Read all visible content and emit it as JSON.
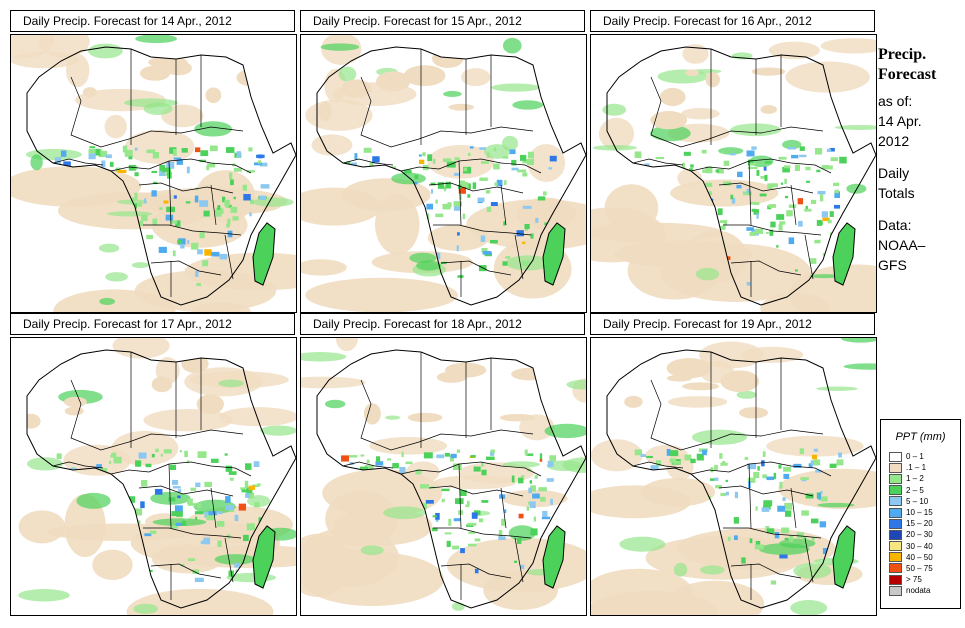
{
  "panels": [
    {
      "title": "Daily Precip. Forecast for  14 Apr., 2012",
      "seed": 11,
      "intensity": 1.0
    },
    {
      "title": "Daily Precip. Forecast for  15 Apr., 2012",
      "seed": 23,
      "intensity": 0.85
    },
    {
      "title": "Daily Precip. Forecast for  16 Apr., 2012",
      "seed": 37,
      "intensity": 0.95
    },
    {
      "title": "Daily Precip. Forecast for  17 Apr., 2012",
      "seed": 41,
      "intensity": 0.8
    },
    {
      "title": "Daily Precip. Forecast for  18 Apr., 2012",
      "seed": 53,
      "intensity": 0.85
    },
    {
      "title": "Daily Precip. Forecast for  19 Apr., 2012",
      "seed": 67,
      "intensity": 0.9
    }
  ],
  "side": {
    "title": "Precip.\nForecast",
    "asof": "as of:\n14 Apr.\n2012",
    "totals": "Daily\nTotals",
    "source": "Data:\nNOAA–\nGFS"
  },
  "legend": {
    "title": "PPT (mm)",
    "items": [
      {
        "label": "0 – 1",
        "color": "#ffffff"
      },
      {
        "label": ".1 – 1",
        "color": "#f0dcc0"
      },
      {
        "label": "1 – 2",
        "color": "#96e68c"
      },
      {
        "label": "2 – 5",
        "color": "#4cd25a"
      },
      {
        "label": "5 – 10",
        "color": "#8cc8f0"
      },
      {
        "label": "10 – 15",
        "color": "#50aaf0"
      },
      {
        "label": "15 – 20",
        "color": "#2d78e6"
      },
      {
        "label": "20 – 30",
        "color": "#1e46b4"
      },
      {
        "label": "30 – 40",
        "color": "#f5e682"
      },
      {
        "label": "40 – 50",
        "color": "#fab400"
      },
      {
        "label": "50 – 75",
        "color": "#f05014"
      },
      {
        "label": "> 75",
        "color": "#b40000"
      },
      {
        "label": "nodata",
        "color": "#c8c8c8"
      }
    ]
  }
}
